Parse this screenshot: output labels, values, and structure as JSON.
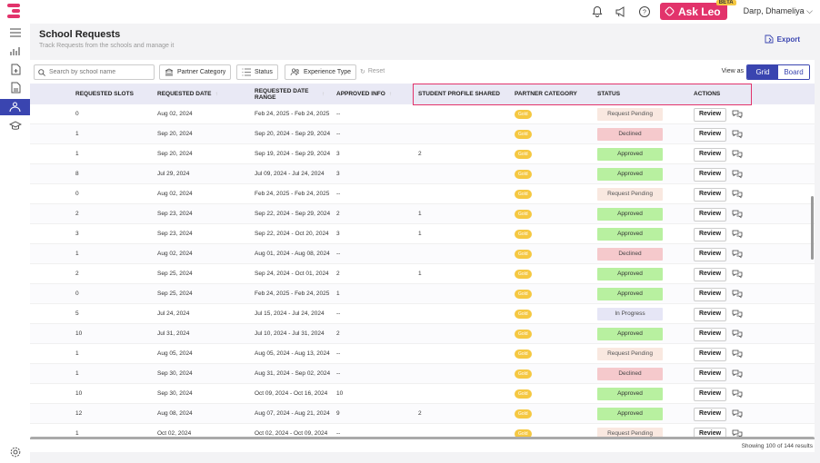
{
  "header": {
    "ask_leo": "Ask Leo",
    "beta": "BETA",
    "user_name": "Darp, Dhameliya"
  },
  "page": {
    "title": "School Requests",
    "subtitle": "Track Requests from the schools and manage it",
    "export_label": "Export"
  },
  "filters": {
    "search_placeholder": "Search by school name",
    "partner_category": "Partner Category",
    "status": "Status",
    "experience_type": "Experience Type",
    "reset": "Reset",
    "view_as": "View as",
    "grid": "Grid",
    "board": "Board"
  },
  "table": {
    "columns": [
      "REQUESTED SLOTS",
      "REQUESTED DATE",
      "REQUESTED DATE RANGE",
      "APPROVED INFO",
      "STUDENT PROFILE SHARED",
      "PARTNER CATEGORY",
      "STATUS",
      "ACTIONS"
    ],
    "review_label": "Review",
    "rows": [
      {
        "slots": "0",
        "date": "Aug 02, 2024",
        "range": "Feb 24, 2025 - Feb 24, 2025",
        "approved": "--",
        "profile": "",
        "category": "Gold",
        "status": "Request Pending",
        "kind": "pending"
      },
      {
        "slots": "1",
        "date": "Sep 20, 2024",
        "range": "Sep 20, 2024 - Sep 29, 2024",
        "approved": "--",
        "profile": "",
        "category": "Gold",
        "status": "Declined",
        "kind": "declined"
      },
      {
        "slots": "1",
        "date": "Sep 20, 2024",
        "range": "Sep 19, 2024 - Sep 29, 2024",
        "approved": "3",
        "profile": "2",
        "category": "Gold",
        "status": "Approved",
        "kind": "approved"
      },
      {
        "slots": "8",
        "date": "Jul 29, 2024",
        "range": "Jul 09, 2024 - Jul 24, 2024",
        "approved": "3",
        "profile": "",
        "category": "Gold",
        "status": "Approved",
        "kind": "approved"
      },
      {
        "slots": "0",
        "date": "Aug 02, 2024",
        "range": "Feb 24, 2025 - Feb 24, 2025",
        "approved": "--",
        "profile": "",
        "category": "Gold",
        "status": "Request Pending",
        "kind": "pending"
      },
      {
        "slots": "2",
        "date": "Sep 23, 2024",
        "range": "Sep 22, 2024 - Sep 29, 2024",
        "approved": "2",
        "profile": "1",
        "category": "Gold",
        "status": "Approved",
        "kind": "approved"
      },
      {
        "slots": "3",
        "date": "Sep 23, 2024",
        "range": "Sep 22, 2024 - Oct 20, 2024",
        "approved": "3",
        "profile": "1",
        "category": "Gold",
        "status": "Approved",
        "kind": "approved"
      },
      {
        "slots": "1",
        "date": "Aug 02, 2024",
        "range": "Aug 01, 2024 - Aug 08, 2024",
        "approved": "--",
        "profile": "",
        "category": "Gold",
        "status": "Declined",
        "kind": "declined"
      },
      {
        "slots": "2",
        "date": "Sep 25, 2024",
        "range": "Sep 24, 2024 - Oct 01, 2024",
        "approved": "2",
        "profile": "1",
        "category": "Gold",
        "status": "Approved",
        "kind": "approved"
      },
      {
        "slots": "0",
        "date": "Sep 25, 2024",
        "range": "Feb 24, 2025 - Feb 24, 2025",
        "approved": "1",
        "profile": "",
        "category": "Gold",
        "status": "Approved",
        "kind": "approved"
      },
      {
        "slots": "5",
        "date": "Jul 24, 2024",
        "range": "Jul 15, 2024 - Jul 24, 2024",
        "approved": "--",
        "profile": "",
        "category": "Gold",
        "status": "In Progress",
        "kind": "progress"
      },
      {
        "slots": "10",
        "date": "Jul 31, 2024",
        "range": "Jul 10, 2024 - Jul 31, 2024",
        "approved": "2",
        "profile": "",
        "category": "Gold",
        "status": "Approved",
        "kind": "approved"
      },
      {
        "slots": "1",
        "date": "Aug 05, 2024",
        "range": "Aug 05, 2024 - Aug 13, 2024",
        "approved": "--",
        "profile": "",
        "category": "Gold",
        "status": "Request Pending",
        "kind": "pending"
      },
      {
        "slots": "1",
        "date": "Sep 30, 2024",
        "range": "Aug 31, 2024 - Sep 02, 2024",
        "approved": "--",
        "profile": "",
        "category": "Gold",
        "status": "Declined",
        "kind": "declined"
      },
      {
        "slots": "10",
        "date": "Sep 30, 2024",
        "range": "Oct 09, 2024 - Oct 16, 2024",
        "approved": "10",
        "profile": "",
        "category": "Gold",
        "status": "Approved",
        "kind": "approved"
      },
      {
        "slots": "12",
        "date": "Aug 08, 2024",
        "range": "Aug 07, 2024 - Aug 21, 2024",
        "approved": "9",
        "profile": "2",
        "category": "Gold",
        "status": "Approved",
        "kind": "approved"
      },
      {
        "slots": "1",
        "date": "Oct 02, 2024",
        "range": "Oct 02, 2024 - Oct 09, 2024",
        "approved": "--",
        "profile": "",
        "category": "Gold",
        "status": "Request Pending",
        "kind": "pending"
      }
    ]
  },
  "footer": {
    "showing": "Showing 100 of 144 results"
  }
}
